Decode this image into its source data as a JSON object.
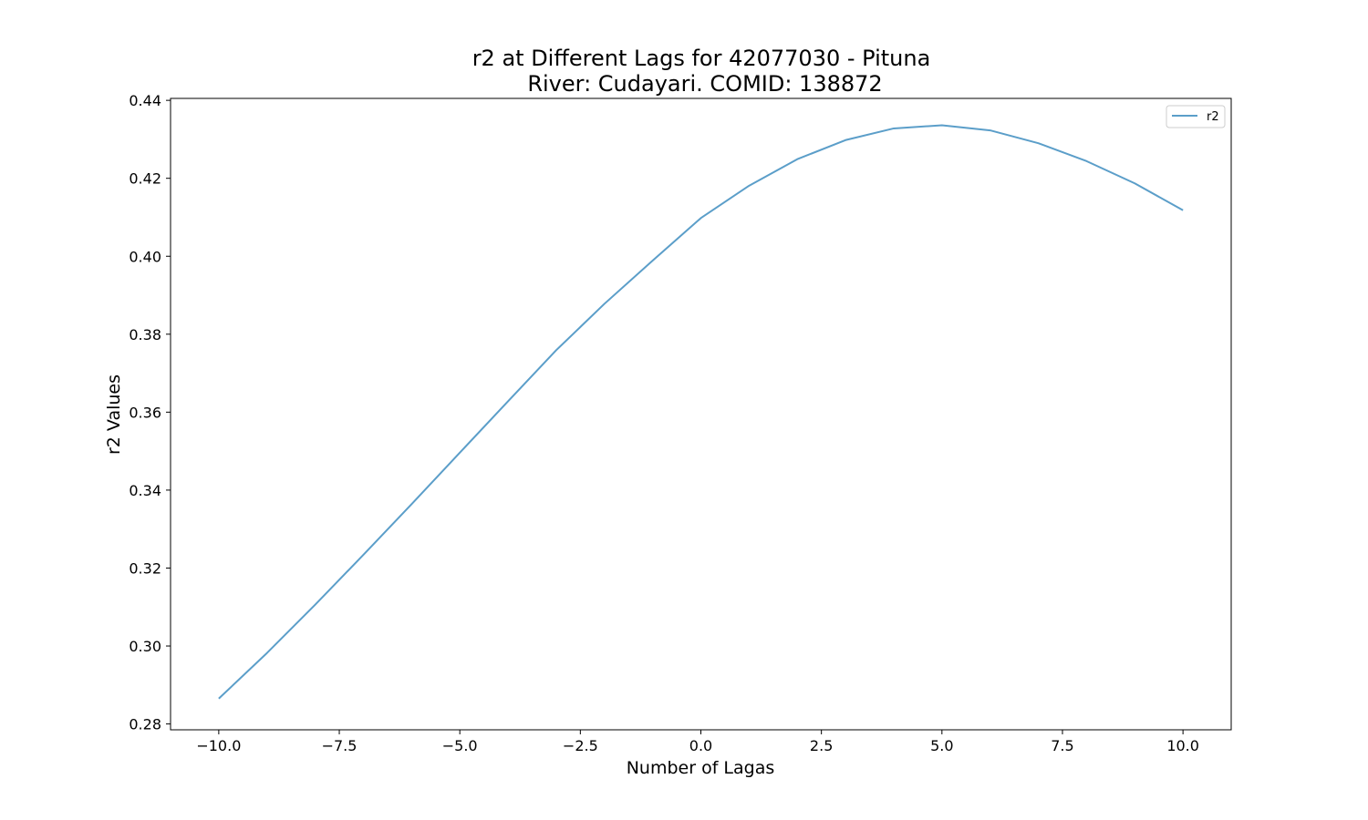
{
  "colors": {
    "series": "#5b9ec9",
    "axes": "#000000",
    "background": "#ffffff",
    "legend_border": "#cccccc"
  },
  "chart_data": {
    "type": "line",
    "title": "r2 at Different Lags for 42077030 - Pituna",
    "subtitle": "River: Cudayari. COMID: 138872",
    "xlabel": "Number of Lagas",
    "ylabel": "r2 Values",
    "xlim": [
      -11,
      11
    ],
    "ylim": [
      0.2785,
      0.4405
    ],
    "xticks": [
      -10.0,
      -7.5,
      -5.0,
      -2.5,
      0.0,
      2.5,
      5.0,
      7.5,
      10.0
    ],
    "xtick_labels": [
      "−10.0",
      "−7.5",
      "−5.0",
      "−2.5",
      "0.0",
      "2.5",
      "5.0",
      "7.5",
      "10.0"
    ],
    "yticks": [
      0.28,
      0.3,
      0.32,
      0.34,
      0.36,
      0.38,
      0.4,
      0.42,
      0.44
    ],
    "ytick_labels": [
      "0.28",
      "0.30",
      "0.32",
      "0.34",
      "0.36",
      "0.38",
      "0.40",
      "0.42",
      "0.44"
    ],
    "grid": false,
    "legend_position": "top-right",
    "series": [
      {
        "name": "r2",
        "x": [
          -10,
          -9,
          -8,
          -7,
          -6,
          -5,
          -4,
          -3,
          -2,
          -1,
          0,
          1,
          2,
          3,
          4,
          5,
          6,
          7,
          8,
          9,
          10
        ],
        "values": [
          0.2865,
          0.2982,
          0.3106,
          0.3234,
          0.3364,
          0.3496,
          0.3628,
          0.3759,
          0.3878,
          0.3989,
          0.4098,
          0.4181,
          0.4249,
          0.4298,
          0.4328,
          0.4336,
          0.4323,
          0.429,
          0.4244,
          0.4187,
          0.4118
        ]
      }
    ]
  }
}
